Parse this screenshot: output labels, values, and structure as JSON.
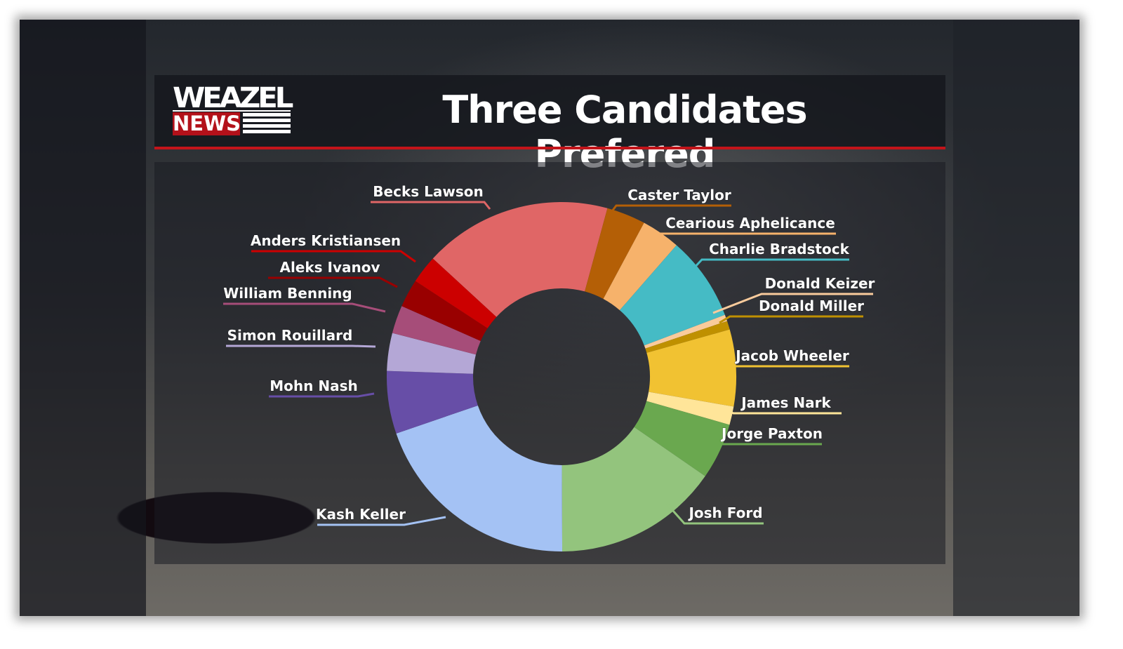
{
  "logo": {
    "line1": "WEAZEL",
    "line2": "NEWS"
  },
  "colors": {
    "accent_red": "#c3141a"
  },
  "chart_data": {
    "type": "pie",
    "donut": true,
    "title": "Three Candidates Prefered",
    "unit": "percent",
    "slices": [
      {
        "label": "Becks Lawson",
        "value": 17.4,
        "color": "#e06666"
      },
      {
        "label": "Caster Taylor",
        "value": 3.6,
        "color": "#b45f06"
      },
      {
        "label": "Cearious Aphelicance",
        "value": 3.6,
        "color": "#f6b26b"
      },
      {
        "label": "Charlie Bradstock",
        "value": 7.8,
        "color": "#45bbc5"
      },
      {
        "label": "Donald Keizer",
        "value": 0.6,
        "color": "#f9cb9c"
      },
      {
        "label": "Donald Miller",
        "value": 0.8,
        "color": "#bf9000"
      },
      {
        "label": "Jacob Wheeler",
        "value": 7.1,
        "color": "#f1c232"
      },
      {
        "label": "James Nark",
        "value": 1.7,
        "color": "#ffe599"
      },
      {
        "label": "Jorge Paxton",
        "value": 5.2,
        "color": "#6aa84f"
      },
      {
        "label": "Josh Ford",
        "value": 15.3,
        "color": "#93c47d"
      },
      {
        "label": "Kash Keller",
        "value": 19.8,
        "color": "#a4c2f4"
      },
      {
        "label": "Mohn Nash",
        "value": 5.8,
        "color": "#674ea7"
      },
      {
        "label": "Simon Rouillard",
        "value": 3.5,
        "color": "#b4a7d6"
      },
      {
        "label": "William Benning",
        "value": 2.6,
        "color": "#a64d79"
      },
      {
        "label": "Aleks Ivanov",
        "value": 2.6,
        "color": "#990000"
      },
      {
        "label": "Anders Kristiansen",
        "value": 2.6,
        "color": "#cc0000"
      }
    ]
  }
}
